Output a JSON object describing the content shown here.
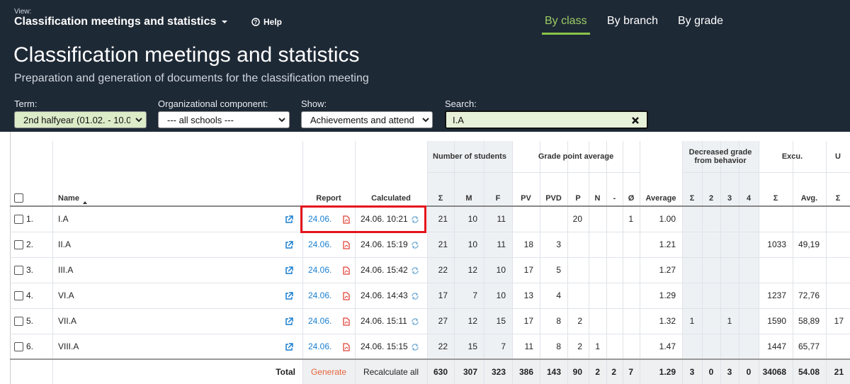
{
  "header": {
    "view_label": "View:",
    "view_name": "Classification meetings and statistics",
    "help": "Help",
    "tabs": [
      "By class",
      "By branch",
      "By grade"
    ],
    "title": "Classification meetings and statistics",
    "subtitle": "Preparation and generation of documents for the classification meeting"
  },
  "filters": [
    {
      "label": "Term:",
      "value": "2nd halfyear (01.02. - 10.0"
    },
    {
      "label": "Organizational component:",
      "value": "--- all schools ---"
    },
    {
      "label": "Show:",
      "value": "Achievements and attend"
    },
    {
      "label": "Search:",
      "value": "I.A"
    }
  ],
  "table": {
    "groups": [
      "Number of students",
      "Grade point average",
      "Decreased grade from behavior",
      "Excu.",
      "U"
    ],
    "columns": [
      null,
      "Name",
      "Report",
      "Calculated",
      "Σ",
      "M",
      "F",
      "PV",
      "PVD",
      "P",
      "N",
      "-",
      "Ø",
      "Average",
      "Σ",
      "2",
      "3",
      "4",
      "Σ",
      "Avg.",
      "Σ"
    ],
    "rows": [
      [
        "1.",
        "I.A",
        "24.06.",
        "24.06. 10:21",
        "21",
        "10",
        "11",
        null,
        null,
        "20",
        null,
        null,
        "1",
        "1.00",
        null,
        null,
        null,
        null,
        null,
        null,
        null
      ],
      [
        "2.",
        "II.A",
        "24.06.",
        "24.06. 15:19",
        "21",
        "10",
        "11",
        "18",
        "3",
        null,
        null,
        null,
        null,
        "1.21",
        null,
        null,
        null,
        null,
        "1033",
        "49,19",
        null
      ],
      [
        "3.",
        "III.A",
        "24.06.",
        "24.06. 15:42",
        "22",
        "12",
        "10",
        "17",
        "5",
        null,
        null,
        null,
        null,
        "1.27",
        null,
        null,
        null,
        null,
        null,
        null,
        null
      ],
      [
        "4.",
        "VI.A",
        "24.06.",
        "24.06. 14:43",
        "17",
        "7",
        "10",
        "13",
        "4",
        null,
        null,
        null,
        null,
        "1.29",
        null,
        null,
        null,
        null,
        "1237",
        "72,76",
        null
      ],
      [
        "5.",
        "VII.A",
        "24.06.",
        "24.06. 15:11",
        "27",
        "12",
        "15",
        "17",
        "8",
        "2",
        null,
        null,
        null,
        "1.32",
        "1",
        null,
        "1",
        null,
        "1590",
        "58,89",
        "17"
      ],
      [
        "6.",
        "VIII.A",
        "24.06.",
        "24.06. 15:15",
        "22",
        "15",
        "7",
        "11",
        "8",
        "2",
        "1",
        null,
        null,
        "1.47",
        null,
        null,
        null,
        null,
        "1447",
        "65,77",
        null
      ]
    ],
    "total": [
      null,
      "Total",
      "Generate",
      "Recalculate all",
      "630",
      "307",
      "323",
      "386",
      "143",
      "90",
      "2",
      "2",
      "7",
      "1.29",
      "3",
      "0",
      "3",
      "0",
      "34068",
      "54.08",
      "21"
    ]
  }
}
